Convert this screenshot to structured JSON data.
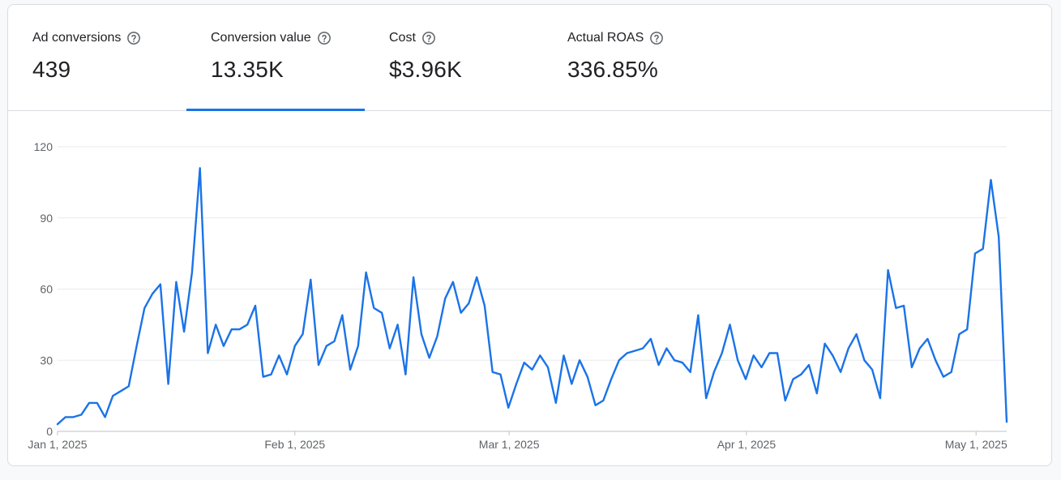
{
  "scorecards": [
    {
      "label": "Ad conversions",
      "value": "439",
      "selected": false
    },
    {
      "label": "Conversion value",
      "value": "13.35K",
      "selected": true
    },
    {
      "label": "Cost",
      "value": "$3.96K",
      "selected": false
    },
    {
      "label": "Actual ROAS",
      "value": "336.85%",
      "selected": false
    }
  ],
  "colors": {
    "series": "#1a73e8",
    "grid": "#e8eaed",
    "axis": "#5f6368",
    "selected": "#1a73e8"
  },
  "chart_data": {
    "type": "line",
    "title": "",
    "xlabel": "",
    "ylabel": "",
    "ylim": [
      0,
      120
    ],
    "yticks": [
      "0",
      "30",
      "60",
      "90",
      "120"
    ],
    "xticks": [
      {
        "label": "Jan 1, 2025",
        "x": "2025-01-01"
      },
      {
        "label": "Feb 1, 2025",
        "x": "2025-02-01"
      },
      {
        "label": "Mar 1, 2025",
        "x": "2025-03-01"
      },
      {
        "label": "Apr 1, 2025",
        "x": "2025-04-01"
      },
      {
        "label": "May 1, 2025",
        "x": "2025-05-01"
      }
    ],
    "grid": true,
    "x_start": "2025-01-01",
    "x_end": "2025-05-05",
    "series": [
      {
        "values": [
          3,
          6,
          6,
          7,
          12,
          12,
          6,
          15,
          17,
          19,
          36,
          52,
          58,
          62,
          20,
          63,
          42,
          67,
          111,
          33,
          45,
          36,
          43,
          43,
          45,
          53,
          23,
          24,
          32,
          24,
          36,
          41,
          64,
          28,
          36,
          38,
          49,
          26,
          36,
          67,
          52,
          50,
          35,
          45,
          24,
          65,
          41,
          31,
          40,
          56,
          63,
          50,
          54,
          65,
          53,
          25,
          24,
          10,
          20,
          29,
          26,
          32,
          27,
          12,
          32,
          20,
          30,
          23,
          11,
          13,
          22,
          30,
          33,
          34,
          35,
          39,
          28,
          35,
          30,
          29,
          25,
          49,
          14,
          25,
          33,
          45,
          30,
          22,
          32,
          27,
          33,
          33,
          13,
          22,
          24,
          28,
          16,
          37,
          32,
          25,
          35,
          41,
          30,
          26,
          14,
          68,
          52,
          53,
          27,
          35,
          39,
          30,
          23,
          25,
          41,
          43,
          75,
          77,
          106,
          82,
          4
        ]
      }
    ]
  }
}
